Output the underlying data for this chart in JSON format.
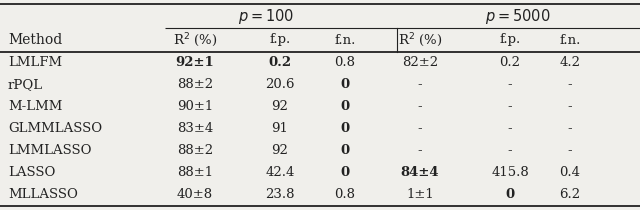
{
  "bg_color": "#f0efeb",
  "line_color": "#222222",
  "row_header": "Method",
  "group_labels": [
    "p = 100",
    "p = 5000"
  ],
  "col_headers": [
    "R$^2$ (%)",
    "f.p.",
    "f.n.",
    "R$^2$ (%)",
    "f.p.",
    "f.n."
  ],
  "methods": [
    "LMLFM",
    "rPQL",
    "M-LMM",
    "GLMMLASSO",
    "LMMLASSO",
    "LASSO",
    "MLLASSO"
  ],
  "data": [
    [
      {
        "text": "92±1",
        "bold": true
      },
      {
        "text": "0.2",
        "bold": true
      },
      {
        "text": "0.8",
        "bold": false
      },
      {
        "text": "82±2",
        "bold": false
      },
      {
        "text": "0.2",
        "bold": false
      },
      {
        "text": "4.2",
        "bold": false
      }
    ],
    [
      {
        "text": "88±2",
        "bold": false
      },
      {
        "text": "20.6",
        "bold": false
      },
      {
        "text": "0",
        "bold": true
      },
      {
        "text": "-",
        "bold": false
      },
      {
        "text": "-",
        "bold": false
      },
      {
        "text": "-",
        "bold": false
      }
    ],
    [
      {
        "text": "90±1",
        "bold": false
      },
      {
        "text": "92",
        "bold": false
      },
      {
        "text": "0",
        "bold": true
      },
      {
        "text": "-",
        "bold": false
      },
      {
        "text": "-",
        "bold": false
      },
      {
        "text": "-",
        "bold": false
      }
    ],
    [
      {
        "text": "83±4",
        "bold": false
      },
      {
        "text": "91",
        "bold": false
      },
      {
        "text": "0",
        "bold": true
      },
      {
        "text": "-",
        "bold": false
      },
      {
        "text": "-",
        "bold": false
      },
      {
        "text": "-",
        "bold": false
      }
    ],
    [
      {
        "text": "88±2",
        "bold": false
      },
      {
        "text": "92",
        "bold": false
      },
      {
        "text": "0",
        "bold": true
      },
      {
        "text": "-",
        "bold": false
      },
      {
        "text": "-",
        "bold": false
      },
      {
        "text": "-",
        "bold": false
      }
    ],
    [
      {
        "text": "88±1",
        "bold": false
      },
      {
        "text": "42.4",
        "bold": false
      },
      {
        "text": "0",
        "bold": true
      },
      {
        "text": "84±4",
        "bold": true
      },
      {
        "text": "415.8",
        "bold": false
      },
      {
        "text": "0.4",
        "bold": false
      }
    ],
    [
      {
        "text": "40±8",
        "bold": false
      },
      {
        "text": "23.8",
        "bold": false
      },
      {
        "text": "0.8",
        "bold": false
      },
      {
        "text": "1±1",
        "bold": false
      },
      {
        "text": "0",
        "bold": true
      },
      {
        "text": "6.2",
        "bold": false
      }
    ]
  ],
  "figsize": [
    6.4,
    2.1
  ],
  "dpi": 100
}
